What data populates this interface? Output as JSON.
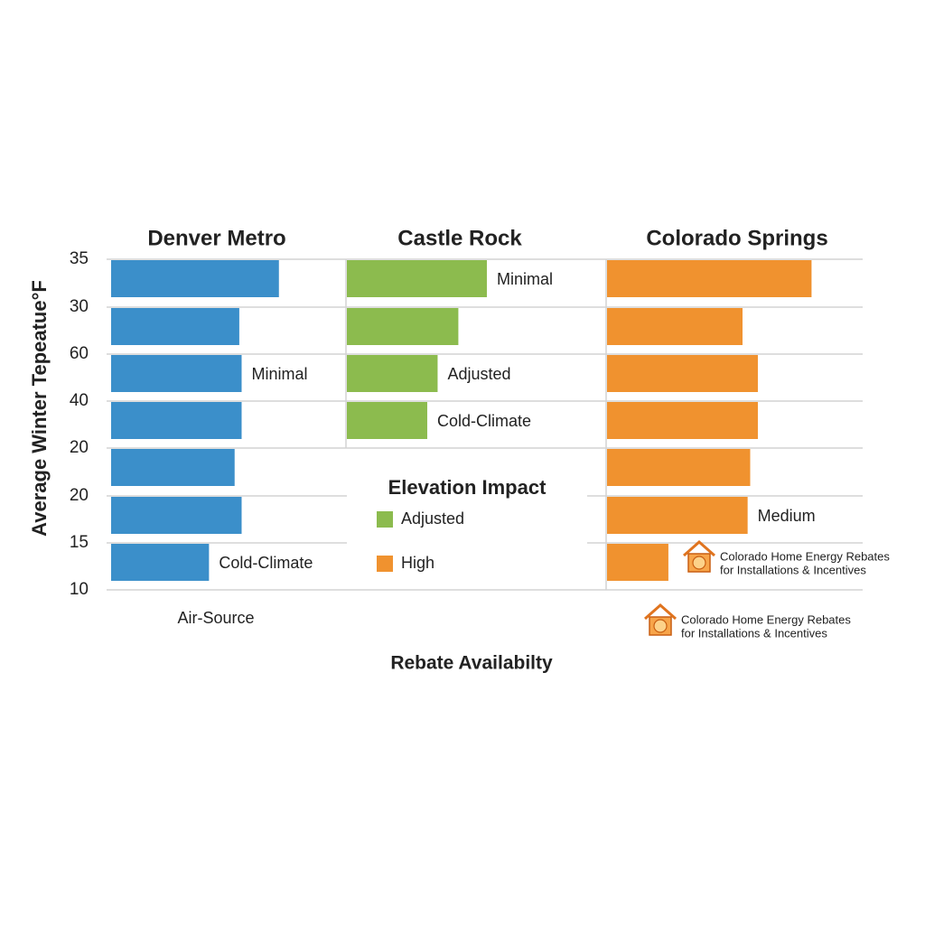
{
  "chart_data": {
    "type": "bar",
    "y_axis_label": "Average Winter Tepeatue°F",
    "x_axis_label": "Rebate Availabilty",
    "y_labels": [
      "35",
      "30",
      "60",
      "40",
      "20",
      "20",
      "15",
      "10"
    ],
    "xlim": [
      0,
      100
    ],
    "panels": [
      {
        "title": "Denver Metro",
        "color": "#3b8fca",
        "values": [
          72,
          55,
          56,
          56,
          53,
          56,
          42
        ],
        "bar_labels": [
          null,
          null,
          "Minimal",
          null,
          null,
          null,
          "Cold-Climate"
        ],
        "footer": "Air-Source"
      },
      {
        "title": "Castle Rock",
        "color": "#8cbb4e",
        "values": [
          54,
          43,
          35,
          31
        ],
        "bar_labels": [
          "Minimal",
          null,
          "Adjusted",
          "Cold-Climate"
        ]
      },
      {
        "title": "Colorado Springs",
        "color": "#f0922f",
        "values": [
          80,
          53,
          59,
          59,
          56,
          55,
          24
        ],
        "bar_labels": [
          null,
          null,
          null,
          null,
          null,
          "Medium",
          null
        ]
      }
    ],
    "legend": {
      "title": "Elevation Impact",
      "items": [
        {
          "name": "Adjusted",
          "color": "#8cbb4e"
        },
        {
          "name": "High",
          "color": "#f0922f"
        }
      ]
    },
    "notes": [
      {
        "lines": [
          "Colorado Home Energy Rebates",
          "for Installations & Incentives"
        ]
      },
      {
        "lines": [
          "Colorado Home Energy Rebates",
          "for Installations & Incentives"
        ]
      }
    ]
  }
}
